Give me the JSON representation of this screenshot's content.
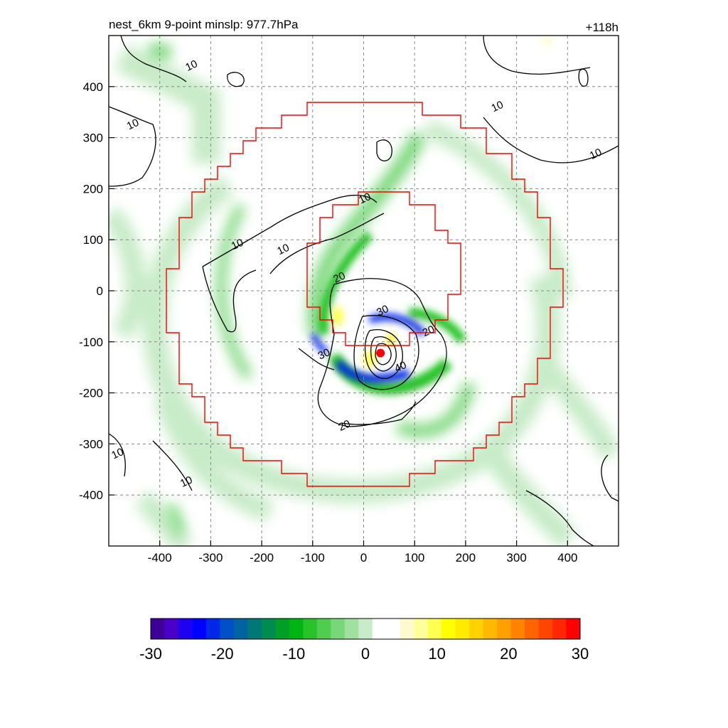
{
  "chart_data": {
    "type": "heatmap",
    "title": "nest_6km  9-point minslp: 977.7hPa",
    "time_label": "+118h",
    "xlabel": "",
    "ylabel": "",
    "xlim": [
      -500,
      500
    ],
    "ylim": [
      -500,
      500
    ],
    "x_ticks": [
      -400,
      -300,
      -200,
      -100,
      0,
      100,
      200,
      300,
      400
    ],
    "y_ticks": [
      400,
      300,
      200,
      100,
      0,
      -100,
      -200,
      -300,
      -400
    ],
    "grid": true,
    "colorbar": {
      "min": -30,
      "max": 30,
      "ticks": [
        -30,
        -20,
        -10,
        0,
        10,
        20,
        30
      ],
      "colors": [
        "#3c0096",
        "#4b00c8",
        "#2000f0",
        "#0000ff",
        "#0028e6",
        "#0050c8",
        "#0064a0",
        "#007878",
        "#008c50",
        "#00a028",
        "#00b414",
        "#28c328",
        "#50cd50",
        "#78d778",
        "#a0e1a0",
        "#c8ebc8",
        "#ffffff",
        "#ffffff",
        "#fffacd",
        "#ffff9b",
        "#ffff50",
        "#ffff00",
        "#ffeb00",
        "#ffd200",
        "#ffb900",
        "#ffa000",
        "#ff8200",
        "#ff6400",
        "#ff4600",
        "#ff2800",
        "#ff0000"
      ]
    },
    "contour_levels": [
      10,
      20,
      30,
      40
    ],
    "contour_labels": [
      {
        "text": "10",
        "x": -335,
        "y": 435
      },
      {
        "text": "10",
        "x": -450,
        "y": 320
      },
      {
        "text": "10",
        "x": 265,
        "y": 355
      },
      {
        "text": "10",
        "x": 458,
        "y": 262
      },
      {
        "text": "10",
        "x": -245,
        "y": 85
      },
      {
        "text": "10",
        "x": -155,
        "y": 75
      },
      {
        "text": "10",
        "x": 5,
        "y": 175
      },
      {
        "text": "20",
        "x": -45,
        "y": 20
      },
      {
        "text": "30",
        "x": 40,
        "y": -45
      },
      {
        "text": "20",
        "x": 130,
        "y": -85
      },
      {
        "text": "30",
        "x": -75,
        "y": -130
      },
      {
        "text": "40",
        "x": 75,
        "y": -155
      },
      {
        "text": "20",
        "x": -35,
        "y": -270
      },
      {
        "text": "10",
        "x": -480,
        "y": -325
      },
      {
        "text": "10",
        "x": -345,
        "y": -380
      }
    ],
    "storm_center": {
      "x": 33,
      "y": -122
    },
    "radius_rings_km": [
      150,
      380
    ]
  }
}
